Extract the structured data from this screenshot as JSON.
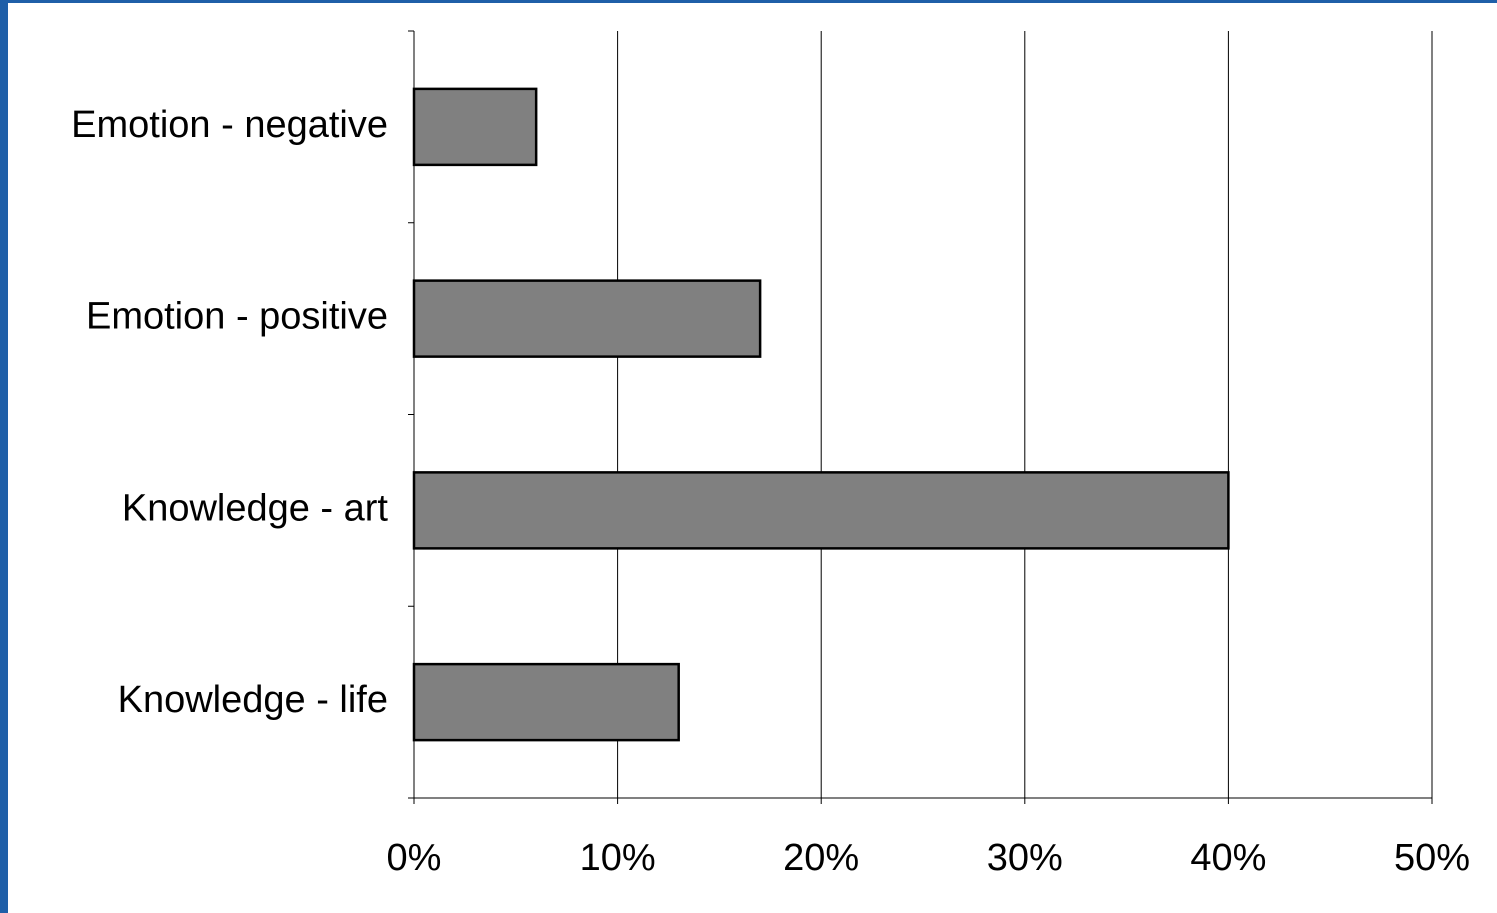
{
  "chart_data": {
    "type": "bar",
    "orientation": "horizontal",
    "categories": [
      "Emotion - negative",
      "Emotion - positive",
      "Knowledge - art",
      "Knowledge - life"
    ],
    "values": [
      6,
      17,
      40,
      13
    ],
    "unit": "%",
    "xlim": [
      0,
      50
    ],
    "xticks": [
      "0%",
      "10%",
      "20%",
      "30%",
      "40%",
      "50%"
    ],
    "grid": "vertical",
    "legend": "none",
    "title": "",
    "xlabel": "",
    "ylabel": "",
    "colors": {
      "bar_fill": "#808080",
      "bar_stroke": "#000000",
      "grid": "#000000",
      "frame": "#1f5fa8"
    }
  }
}
